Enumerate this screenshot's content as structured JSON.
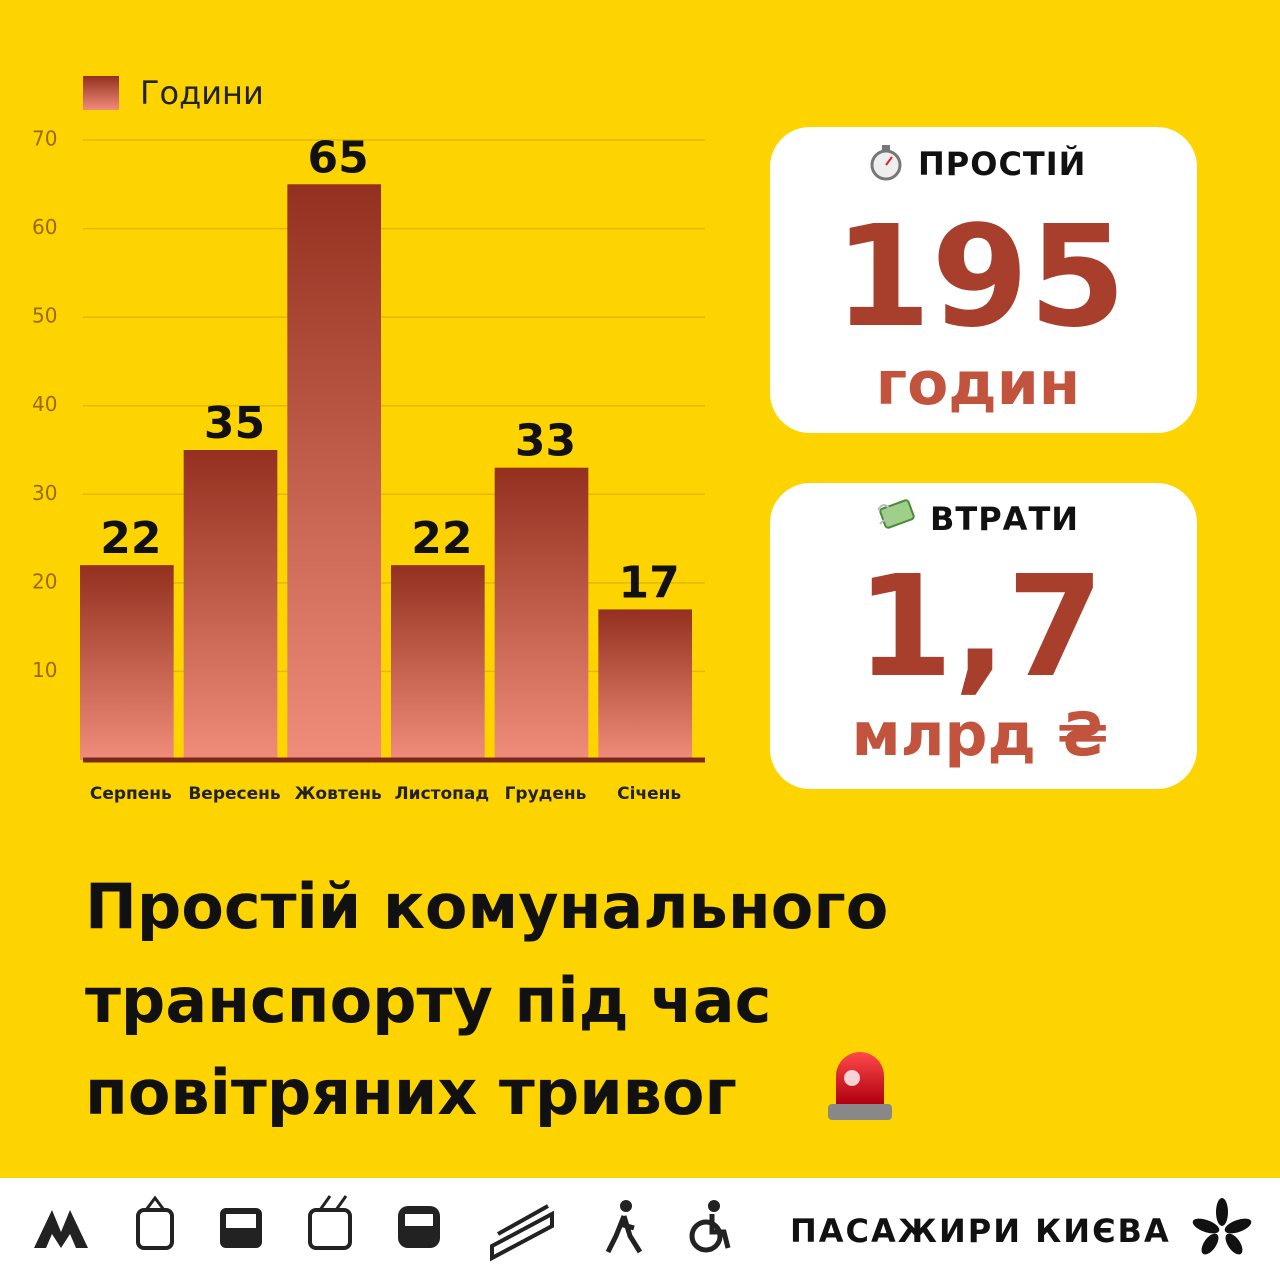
{
  "chart_data": {
    "type": "bar",
    "legend": "Години",
    "categories": [
      "Серпень",
      "Вересень",
      "Жовтень",
      "Листопад",
      "Грудень",
      "Січень"
    ],
    "values": [
      22,
      35,
      65,
      22,
      33,
      17
    ],
    "color": "#c0503d",
    "ylim": [
      0,
      70
    ],
    "yticks": [
      10,
      20,
      30,
      40,
      50,
      60,
      70
    ],
    "grid": true
  },
  "cards": [
    {
      "label": "ПРОСТІЙ",
      "value": "195",
      "unit": "годин"
    },
    {
      "label": "ВТРАТИ",
      "value": "1,7",
      "unit": "млрд ₴"
    }
  ],
  "title": [
    "Простій комунального",
    "транспорту під час",
    "повітряних тривог"
  ],
  "footer": {
    "brand": "ПАСАЖИРИ КИЄВА"
  }
}
